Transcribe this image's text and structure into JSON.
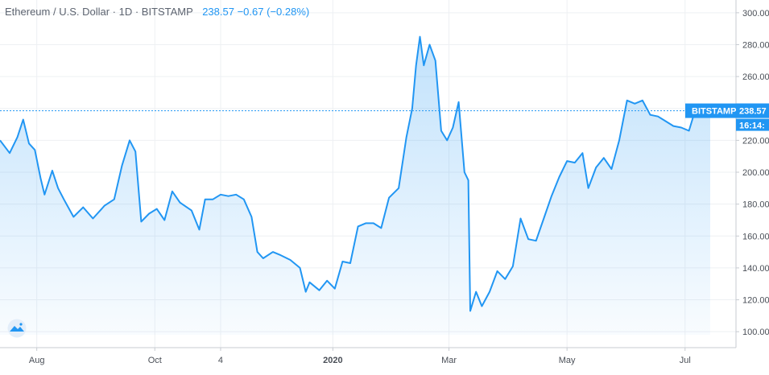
{
  "legend": {
    "symbol_text": "Ethereum / U.S. Dollar · 1D · BITSTAMP",
    "last": "238.57",
    "change": "−0.67",
    "change_pct": "(−0.28%)"
  },
  "colors": {
    "line": "#2196f3",
    "tag_bg": "#2196f3",
    "grid": "#eef0f3"
  },
  "price_tag": {
    "exchange": "BITSTAMP",
    "price": "238.57",
    "countdown": "16:14:"
  },
  "logo_icon": "tradingview-logo-icon",
  "chart_data": {
    "type": "area",
    "title": "Ethereum / U.S. Dollar · 1D · BITSTAMP",
    "xlabel": "",
    "ylabel": "",
    "ylim": [
      90,
      308
    ],
    "yticks": [
      "100.00",
      "120.00",
      "140.00",
      "160.00",
      "180.00",
      "200.00",
      "220.00",
      "240.00",
      "260.00",
      "280.00",
      "300.00"
    ],
    "xticks": [
      {
        "label": "Aug",
        "date": "2019-08-01",
        "bold": false
      },
      {
        "label": "Oct",
        "date": "2019-10-01",
        "bold": false
      },
      {
        "label": "4",
        "date": "2019-11-04",
        "bold": false
      },
      {
        "label": "2020",
        "date": "2020-01-01",
        "bold": true
      },
      {
        "label": "Mar",
        "date": "2020-03-01",
        "bold": false
      },
      {
        "label": "May",
        "date": "2020-05-01",
        "bold": false
      },
      {
        "label": "Jul",
        "date": "2020-07-01",
        "bold": false
      }
    ],
    "last_value": 238.57,
    "grid": true,
    "series": [
      {
        "points": [
          [
            "2019-07-13",
            220
          ],
          [
            "2019-07-18",
            212
          ],
          [
            "2019-07-22",
            222
          ],
          [
            "2019-07-25",
            233
          ],
          [
            "2019-07-28",
            218
          ],
          [
            "2019-07-31",
            214
          ],
          [
            "2019-08-03",
            196
          ],
          [
            "2019-08-05",
            186
          ],
          [
            "2019-08-09",
            201
          ],
          [
            "2019-08-12",
            190
          ],
          [
            "2019-08-15",
            183
          ],
          [
            "2019-08-20",
            172
          ],
          [
            "2019-08-25",
            178
          ],
          [
            "2019-08-30",
            171
          ],
          [
            "2019-09-05",
            179
          ],
          [
            "2019-09-10",
            183
          ],
          [
            "2019-09-14",
            204
          ],
          [
            "2019-09-18",
            220
          ],
          [
            "2019-09-21",
            213
          ],
          [
            "2019-09-24",
            169
          ],
          [
            "2019-09-28",
            174
          ],
          [
            "2019-10-02",
            177
          ],
          [
            "2019-10-06",
            170
          ],
          [
            "2019-10-10",
            188
          ],
          [
            "2019-10-14",
            181
          ],
          [
            "2019-10-20",
            176
          ],
          [
            "2019-10-24",
            164
          ],
          [
            "2019-10-27",
            183
          ],
          [
            "2019-10-31",
            183
          ],
          [
            "2019-11-04",
            186
          ],
          [
            "2019-11-08",
            185
          ],
          [
            "2019-11-12",
            186
          ],
          [
            "2019-11-16",
            183
          ],
          [
            "2019-11-20",
            172
          ],
          [
            "2019-11-23",
            150
          ],
          [
            "2019-11-26",
            146
          ],
          [
            "2019-12-01",
            150
          ],
          [
            "2019-12-05",
            148
          ],
          [
            "2019-12-10",
            145
          ],
          [
            "2019-12-15",
            140
          ],
          [
            "2019-12-18",
            125
          ],
          [
            "2019-12-20",
            131
          ],
          [
            "2019-12-25",
            126
          ],
          [
            "2019-12-29",
            132
          ],
          [
            "2020-01-02",
            127
          ],
          [
            "2020-01-06",
            144
          ],
          [
            "2020-01-10",
            143
          ],
          [
            "2020-01-14",
            166
          ],
          [
            "2020-01-18",
            168
          ],
          [
            "2020-01-22",
            168
          ],
          [
            "2020-01-26",
            165
          ],
          [
            "2020-01-30",
            184
          ],
          [
            "2020-02-04",
            190
          ],
          [
            "2020-02-08",
            222
          ],
          [
            "2020-02-11",
            240
          ],
          [
            "2020-02-13",
            267
          ],
          [
            "2020-02-15",
            285
          ],
          [
            "2020-02-17",
            267
          ],
          [
            "2020-02-20",
            280
          ],
          [
            "2020-02-23",
            270
          ],
          [
            "2020-02-26",
            226
          ],
          [
            "2020-02-29",
            220
          ],
          [
            "2020-03-03",
            228
          ],
          [
            "2020-03-06",
            244
          ],
          [
            "2020-03-09",
            200
          ],
          [
            "2020-03-11",
            195
          ],
          [
            "2020-03-12",
            113
          ],
          [
            "2020-03-15",
            125
          ],
          [
            "2020-03-18",
            116
          ],
          [
            "2020-03-22",
            125
          ],
          [
            "2020-03-26",
            138
          ],
          [
            "2020-03-30",
            133
          ],
          [
            "2020-04-03",
            141
          ],
          [
            "2020-04-07",
            171
          ],
          [
            "2020-04-11",
            158
          ],
          [
            "2020-04-15",
            157
          ],
          [
            "2020-04-19",
            171
          ],
          [
            "2020-04-23",
            185
          ],
          [
            "2020-04-27",
            197
          ],
          [
            "2020-05-01",
            207
          ],
          [
            "2020-05-05",
            206
          ],
          [
            "2020-05-09",
            212
          ],
          [
            "2020-05-12",
            190
          ],
          [
            "2020-05-16",
            203
          ],
          [
            "2020-05-20",
            209
          ],
          [
            "2020-05-24",
            202
          ],
          [
            "2020-05-28",
            220
          ],
          [
            "2020-06-01",
            245
          ],
          [
            "2020-06-05",
            243
          ],
          [
            "2020-06-09",
            245
          ],
          [
            "2020-06-13",
            236
          ],
          [
            "2020-06-17",
            235
          ],
          [
            "2020-06-21",
            232
          ],
          [
            "2020-06-25",
            229
          ],
          [
            "2020-06-29",
            228
          ],
          [
            "2020-07-03",
            226
          ],
          [
            "2020-07-07",
            242
          ],
          [
            "2020-07-11",
            240
          ],
          [
            "2020-07-14",
            238.57
          ]
        ]
      }
    ]
  }
}
